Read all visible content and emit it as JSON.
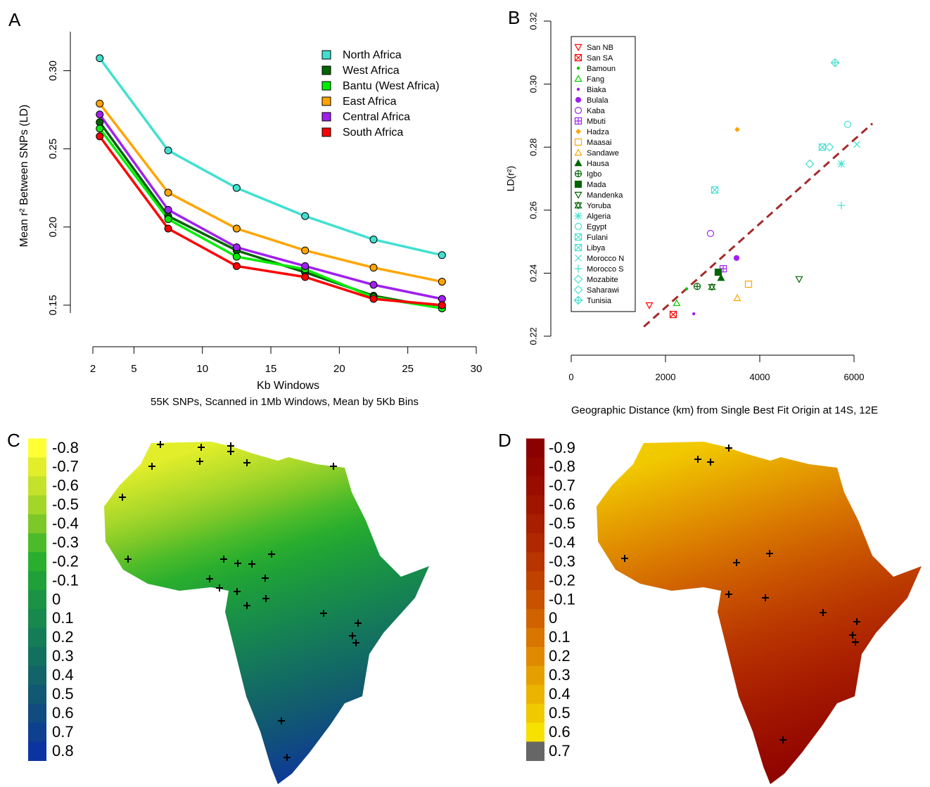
{
  "chart_data": [
    {
      "type": "line",
      "panel": "A",
      "x_label": "Kb Windows",
      "subtitle": "55K SNPs, Scanned in 1Mb Windows, Mean by 5Kb Bins",
      "y_label": "Mean r² Between SNPs (LD)",
      "x": [
        2.5,
        7.5,
        12.5,
        17.5,
        22.5,
        27.5
      ],
      "xlim": [
        2,
        30
      ],
      "xticks": [
        2,
        5,
        10,
        15,
        20,
        25,
        30
      ],
      "ylim": [
        0.145,
        0.325
      ],
      "yticks": [
        0.15,
        {
          "value": 0.2,
          "label": "0.20"
        },
        0.25,
        {
          "value": 0.3,
          "label": "0.30"
        }
      ],
      "legend": "top-right",
      "series": [
        {
          "name": "North Africa",
          "color": "#40e0d0",
          "values": [
            0.308,
            0.249,
            0.225,
            0.207,
            0.192,
            0.182
          ]
        },
        {
          "name": "West Africa",
          "color": "#006400",
          "values": [
            0.267,
            0.207,
            0.185,
            0.171,
            0.156,
            0.148
          ]
        },
        {
          "name": "Bantu (West Africa)",
          "color": "#00ee00",
          "values": [
            0.263,
            0.205,
            0.181,
            0.173,
            0.155,
            0.148
          ]
        },
        {
          "name": "East Africa",
          "color": "#ffa500",
          "values": [
            0.279,
            0.222,
            0.199,
            0.185,
            0.174,
            0.165
          ]
        },
        {
          "name": "Central Africa",
          "color": "#a020f0",
          "values": [
            0.272,
            0.211,
            0.187,
            0.175,
            0.163,
            0.154
          ]
        },
        {
          "name": "South Africa",
          "color": "#ff0000",
          "values": [
            0.258,
            0.199,
            0.175,
            0.168,
            0.154,
            0.15
          ]
        }
      ]
    },
    {
      "type": "scatter",
      "panel": "B",
      "x_label": "Geographic Distance (km) from Single Best Fit Origin at 14S, 12E",
      "y_label": "LD(r²)",
      "xlim": [
        0,
        6000
      ],
      "xticks": [
        0,
        2000,
        4000,
        6000
      ],
      "ylim": [
        0.22,
        0.32
      ],
      "yticks": [
        0.22,
        0.24,
        0.26,
        0.28,
        {
          "value": 0.3,
          "label": "0.30"
        },
        0.32
      ],
      "legend": "top-left",
      "trend_line": {
        "color": "#a52a2a",
        "style": "dashed",
        "x": [
          1540,
          6390
        ],
        "values": [
          0.223,
          0.2875
        ]
      },
      "series": [
        {
          "name": "San NB",
          "color": "#ff0000",
          "marker": "triangle-down",
          "x": [
            1657
          ],
          "values": [
            0.2298
          ]
        },
        {
          "name": "San SA",
          "color": "#ff0000",
          "marker": "square-x",
          "x": [
            2164
          ],
          "values": [
            0.2269
          ]
        },
        {
          "name": "Bamoun",
          "color": "#00cc00",
          "marker": "dot",
          "x": [
            2448
          ],
          "values": [
            0.235
          ]
        },
        {
          "name": "Fang",
          "color": "#00cc00",
          "marker": "triangle",
          "x": [
            2239
          ],
          "values": [
            0.2305
          ]
        },
        {
          "name": "Biaka",
          "color": "#a020f0",
          "marker": "dot",
          "x": [
            2600
          ],
          "values": [
            0.2271
          ]
        },
        {
          "name": "Bulala",
          "color": "#a020f0",
          "marker": "circle-filled",
          "x": [
            3507
          ],
          "values": [
            0.2448
          ]
        },
        {
          "name": "Kaba",
          "color": "#a020f0",
          "marker": "circle",
          "x": [
            2955
          ],
          "values": [
            0.2526
          ]
        },
        {
          "name": "Mbuti",
          "color": "#a020f0",
          "marker": "square-plus",
          "x": [
            3224
          ],
          "values": [
            0.2414
          ]
        },
        {
          "name": "Hadza",
          "color": "#ffa500",
          "marker": "diamond-filled",
          "x": [
            3522
          ],
          "values": [
            0.2856
          ]
        },
        {
          "name": "Maasai",
          "color": "#ffa500",
          "marker": "square",
          "x": [
            3761
          ],
          "values": [
            0.2365
          ]
        },
        {
          "name": "Sandawe",
          "color": "#ffa500",
          "marker": "triangle",
          "x": [
            3522
          ],
          "values": [
            0.2321
          ]
        },
        {
          "name": "Hausa",
          "color": "#006400",
          "marker": "triangle-filled",
          "x": [
            3179
          ],
          "values": [
            0.2385
          ]
        },
        {
          "name": "Igbo",
          "color": "#006400",
          "marker": "circle-plus",
          "x": [
            2672
          ],
          "values": [
            0.2358
          ]
        },
        {
          "name": "Mada",
          "color": "#006400",
          "marker": "square-filled",
          "x": [
            3119
          ],
          "values": [
            0.2403
          ]
        },
        {
          "name": "Mandenka",
          "color": "#006400",
          "marker": "triangle-down",
          "x": [
            4836
          ],
          "values": [
            0.2381
          ]
        },
        {
          "name": "Yoruba",
          "color": "#006400",
          "marker": "hexagram",
          "x": [
            2985
          ],
          "values": [
            0.2356
          ]
        },
        {
          "name": "Algeria",
          "color": "#40e0d0",
          "marker": "asterisk",
          "x": [
            5731
          ],
          "values": [
            0.2747
          ]
        },
        {
          "name": "Egypt",
          "color": "#40e0d0",
          "marker": "circle",
          "x": [
            5866
          ],
          "values": [
            0.2872
          ]
        },
        {
          "name": "Fulani",
          "color": "#40e0d0",
          "marker": "square-x",
          "x": [
            3045
          ],
          "values": [
            0.2664
          ]
        },
        {
          "name": "Libya",
          "color": "#40e0d0",
          "marker": "square-x",
          "x": [
            5328
          ],
          "values": [
            0.28
          ]
        },
        {
          "name": "Morocco N",
          "color": "#40e0d0",
          "marker": "x",
          "x": [
            6060
          ],
          "values": [
            0.2809
          ]
        },
        {
          "name": "Morocco S",
          "color": "#40e0d0",
          "marker": "plus",
          "x": [
            5731
          ],
          "values": [
            0.2615
          ]
        },
        {
          "name": "Mozabite",
          "color": "#40e0d0",
          "marker": "diamond",
          "x": [
            5478
          ],
          "values": [
            0.28
          ]
        },
        {
          "name": "Saharawi",
          "color": "#40e0d0",
          "marker": "diamond",
          "x": [
            5060
          ],
          "values": [
            0.2747
          ]
        },
        {
          "name": "Tunisia",
          "color": "#40e0d0",
          "marker": "diamond-plus",
          "x": [
            5597
          ],
          "values": [
            0.3068
          ]
        }
      ]
    },
    {
      "type": "map",
      "panel": "C",
      "levels": [
        -0.8,
        -0.7,
        -0.6,
        -0.5,
        -0.4,
        -0.3,
        -0.2,
        -0.1,
        0,
        0.1,
        0.2,
        0.3,
        0.4,
        0.5,
        0.6,
        0.7,
        0.8
      ],
      "colors": [
        "#ffff33",
        "#e2ee2a",
        "#c4e22a",
        "#a4d62a",
        "#7cc828",
        "#4cbb2a",
        "#2aae2e",
        "#1fa038",
        "#1a9444",
        "#17884e",
        "#157c58",
        "#137060",
        "#126468",
        "#115872",
        "#104c80",
        "#0e4090",
        "#0c34a0"
      ]
    },
    {
      "type": "map",
      "panel": "D",
      "levels": [
        -0.9,
        -0.8,
        -0.7,
        -0.6,
        -0.5,
        -0.4,
        -0.3,
        -0.2,
        -0.1,
        0,
        0.1,
        0.2,
        0.3,
        0.4,
        0.5,
        0.6,
        0.7
      ],
      "colors": [
        "#8b0000",
        "#920600",
        "#990d00",
        "#a01500",
        "#a81e00",
        "#b02800",
        "#b83400",
        "#c04200",
        "#c85200",
        "#d06300",
        "#d87600",
        "#df8a00",
        "#e59f00",
        "#ebb400",
        "#f1c900",
        "#f7e100",
        "#666666"
      ]
    }
  ]
}
